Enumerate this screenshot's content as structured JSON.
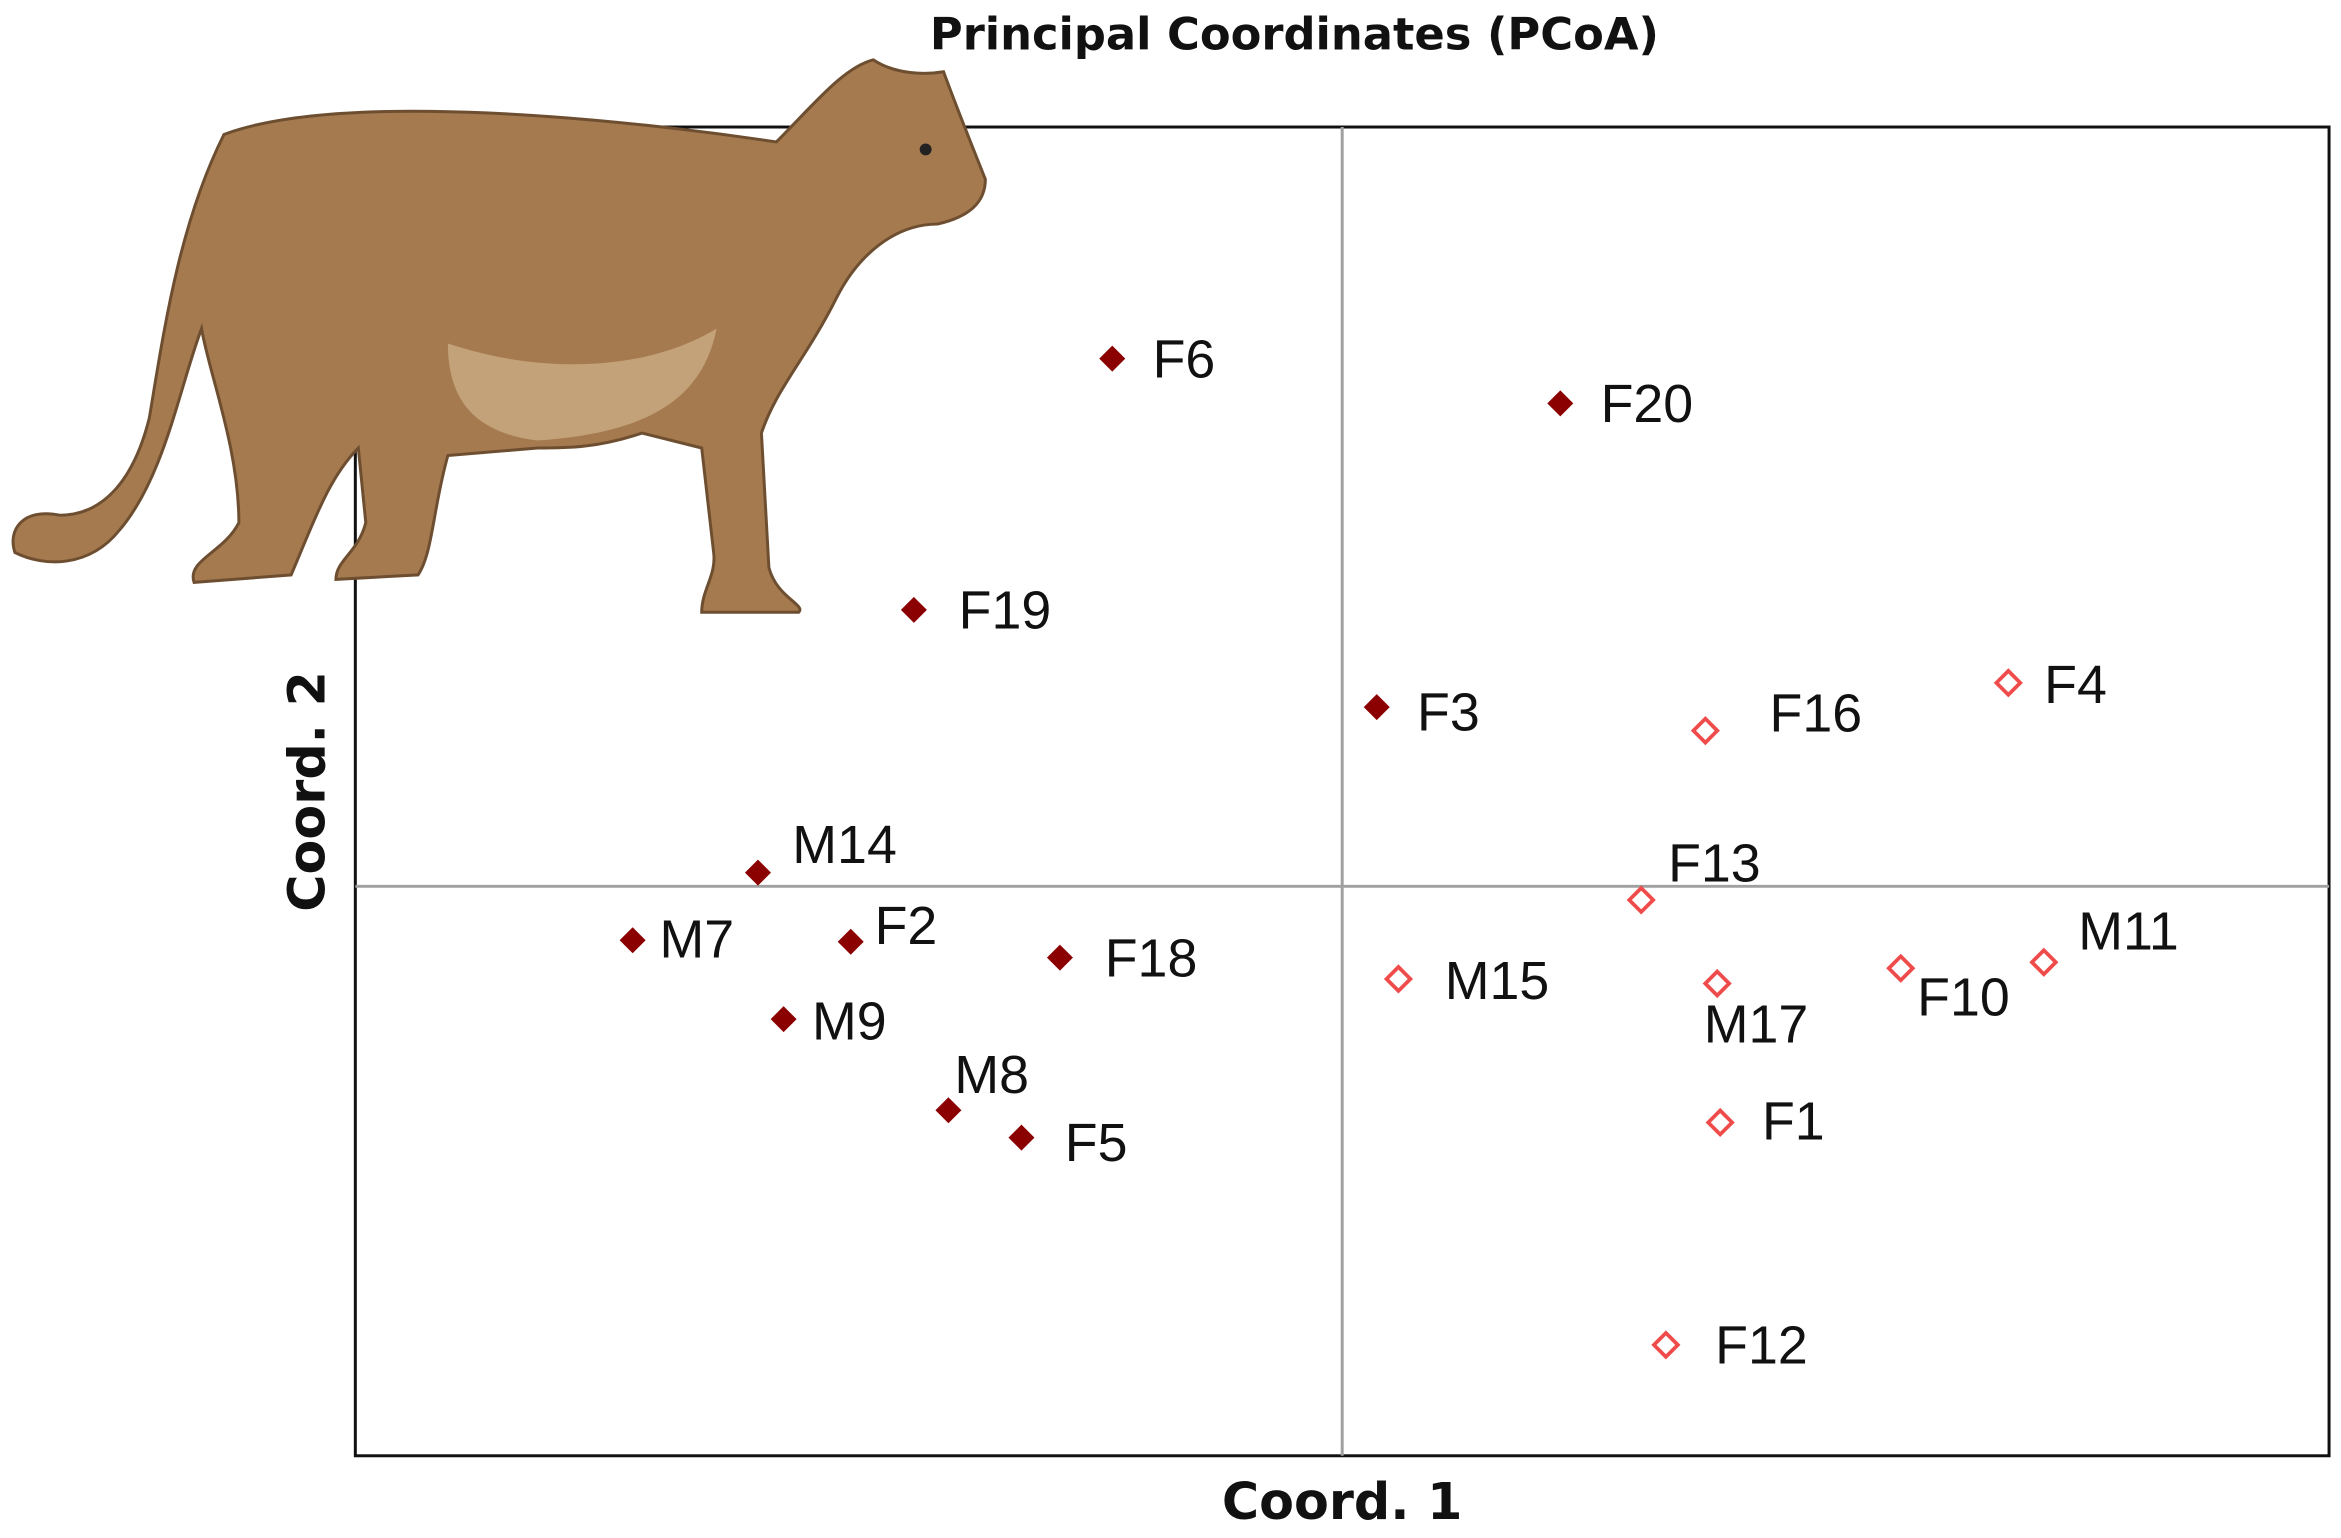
{
  "chart_data": {
    "type": "scatter",
    "title": "Principal Coordinates (PCoA)",
    "x_label": "Coord. 1",
    "y_label": "Coord. 2",
    "xlim": [
      -1,
      1
    ],
    "ylim": [
      -0.75,
      1
    ],
    "series": [
      {
        "color": "#8b0000",
        "marker": "filled",
        "labels": [
          "F6",
          "F20",
          "F19",
          "F3",
          "M14",
          "M7",
          "F2",
          "F18",
          "M9",
          "M8",
          "F5"
        ],
        "x": [
          -0.233,
          0.221,
          -0.434,
          0.035,
          -0.592,
          -0.719,
          -0.498,
          -0.286,
          -0.566,
          -0.399,
          -0.325
        ],
        "values": [
          0.695,
          0.636,
          0.364,
          0.236,
          0.018,
          -0.071,
          -0.073,
          -0.094,
          -0.175,
          -0.295,
          -0.331
        ]
      },
      {
        "color": "#ef4b4b",
        "marker": "open",
        "labels": [
          "F16",
          "F4",
          "F13",
          "M15",
          "M17",
          "F10",
          "M11",
          "F1",
          "F12"
        ],
        "x": [
          0.368,
          0.675,
          0.303,
          0.057,
          0.38,
          0.566,
          0.711,
          0.383,
          0.328
        ],
        "values": [
          0.205,
          0.268,
          -0.018,
          -0.122,
          -0.128,
          -0.108,
          -0.1,
          -0.311,
          -0.604
        ]
      }
    ]
  }
}
